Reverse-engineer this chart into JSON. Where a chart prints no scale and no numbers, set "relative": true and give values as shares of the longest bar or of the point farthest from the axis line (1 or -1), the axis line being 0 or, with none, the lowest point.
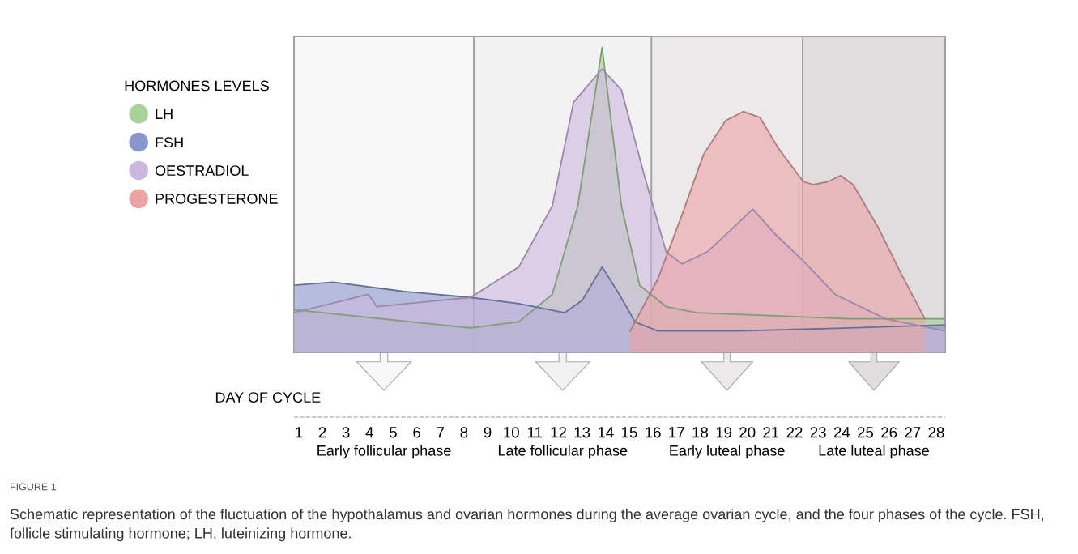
{
  "chart_data": {
    "type": "area",
    "relative": true,
    "legend_title": "HORMONES LEVELS",
    "legend": "left",
    "grid": false,
    "xlabel": "DAY OF CYCLE",
    "xlim": [
      0.8,
      28.38
    ],
    "xticks": [
      1,
      2,
      3,
      4,
      5,
      6,
      7,
      8,
      9,
      10,
      11,
      12,
      13,
      14,
      15,
      16,
      17,
      18,
      19,
      20,
      21,
      22,
      23,
      24,
      25,
      26,
      27,
      28
    ],
    "bands": [
      {
        "axis": "x",
        "from": 0.8,
        "to": 8.42,
        "color": "#f8f8f8"
      },
      {
        "axis": "x",
        "from": 8.42,
        "to": 15.94,
        "color": "#f2f2f2"
      },
      {
        "axis": "x",
        "from": 15.94,
        "to": 22.34,
        "color": "#ebe9ea"
      },
      {
        "axis": "x",
        "from": 22.34,
        "to": 28.38,
        "color": "#dfdddd"
      }
    ],
    "series": [
      {
        "name": "LH",
        "color": "#a9d29a",
        "x": [
          0.8,
          8.27,
          10.32,
          11.74,
          12.82,
          13.85,
          14.67,
          15.44,
          16.56,
          17.85,
          21.15,
          24.33,
          28.38
        ],
        "values": [
          0.14,
          0.08,
          0.1,
          0.19,
          0.48,
          1.0,
          0.48,
          0.22,
          0.15,
          0.13,
          0.12,
          0.11,
          0.11
        ]
      },
      {
        "name": "FSH",
        "color": "#8796cc",
        "x": [
          0.8,
          2.47,
          5.42,
          8.27,
          10.32,
          12.27,
          13.0,
          13.85,
          14.58,
          15.24,
          16.21,
          19.58,
          24.33,
          28.38
        ],
        "values": [
          0.22,
          0.23,
          0.2,
          0.18,
          0.16,
          0.13,
          0.17,
          0.28,
          0.19,
          0.1,
          0.07,
          0.07,
          0.08,
          0.09
        ]
      },
      {
        "name": "OESTRADIOL",
        "color": "#cdb6e0",
        "x": [
          0.8,
          3.95,
          4.31,
          8.27,
          10.32,
          11.74,
          12.64,
          13.85,
          14.67,
          15.64,
          16.56,
          17.23,
          18.31,
          19.42,
          20.23,
          21.15,
          22.37,
          23.72,
          25.85,
          28.38
        ],
        "values": [
          0.13,
          0.19,
          0.15,
          0.18,
          0.28,
          0.48,
          0.82,
          0.93,
          0.86,
          0.58,
          0.33,
          0.29,
          0.33,
          0.41,
          0.47,
          0.39,
          0.3,
          0.19,
          0.11,
          0.07
        ]
      },
      {
        "name": "PROGESTERONE",
        "color": "#eba3a3",
        "x": [
          15.04,
          16.21,
          17.23,
          18.15,
          19.08,
          19.83,
          20.54,
          21.31,
          22.37,
          22.81,
          23.42,
          23.95,
          24.48,
          25.54,
          26.5,
          27.52
        ],
        "values": [
          0.07,
          0.24,
          0.45,
          0.65,
          0.76,
          0.79,
          0.77,
          0.67,
          0.56,
          0.55,
          0.56,
          0.58,
          0.55,
          0.41,
          0.26,
          0.11
        ]
      }
    ],
    "annotations": [
      "Early follicular phase",
      "Late follicular phase",
      "Early luteal phase",
      "Late luteal phase",
      "FIGURE 1",
      "Schematic representation of the fluctuation of the hypothalamus and ovarian hormones during the average ovarian cycle, and the four phases of the cycle. FSH, follicle stimulating hormone; LH, luteinizing hormone."
    ]
  }
}
